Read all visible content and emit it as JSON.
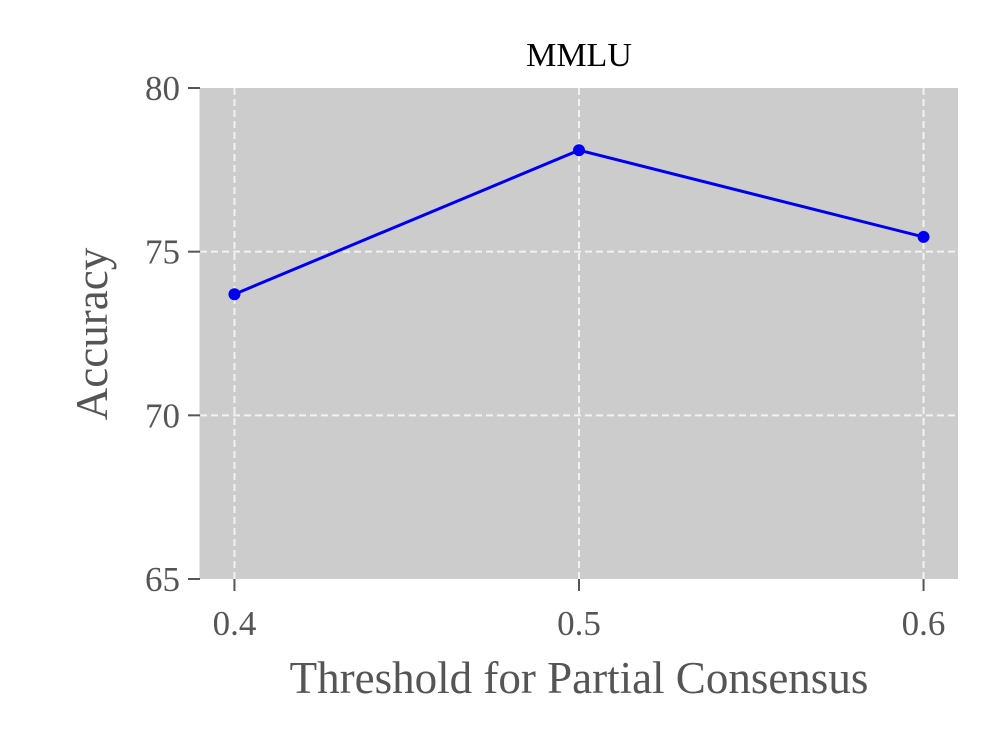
{
  "chart_data": {
    "type": "line",
    "title": "MMLU",
    "xlabel": "Threshold for Partial Consensus",
    "ylabel": "Accuracy",
    "x": [
      0.4,
      0.5,
      0.6
    ],
    "xticks": [
      "0.4",
      "0.5",
      "0.6"
    ],
    "yticks": [
      "65",
      "70",
      "75",
      "80"
    ],
    "ylim": [
      65,
      80
    ],
    "xlim": [
      0.39,
      0.61
    ],
    "grid": true,
    "background_color": "#cccccc",
    "series": [
      {
        "values": [
          73.7,
          78.1,
          75.45
        ],
        "color": "#0000ee"
      }
    ]
  }
}
